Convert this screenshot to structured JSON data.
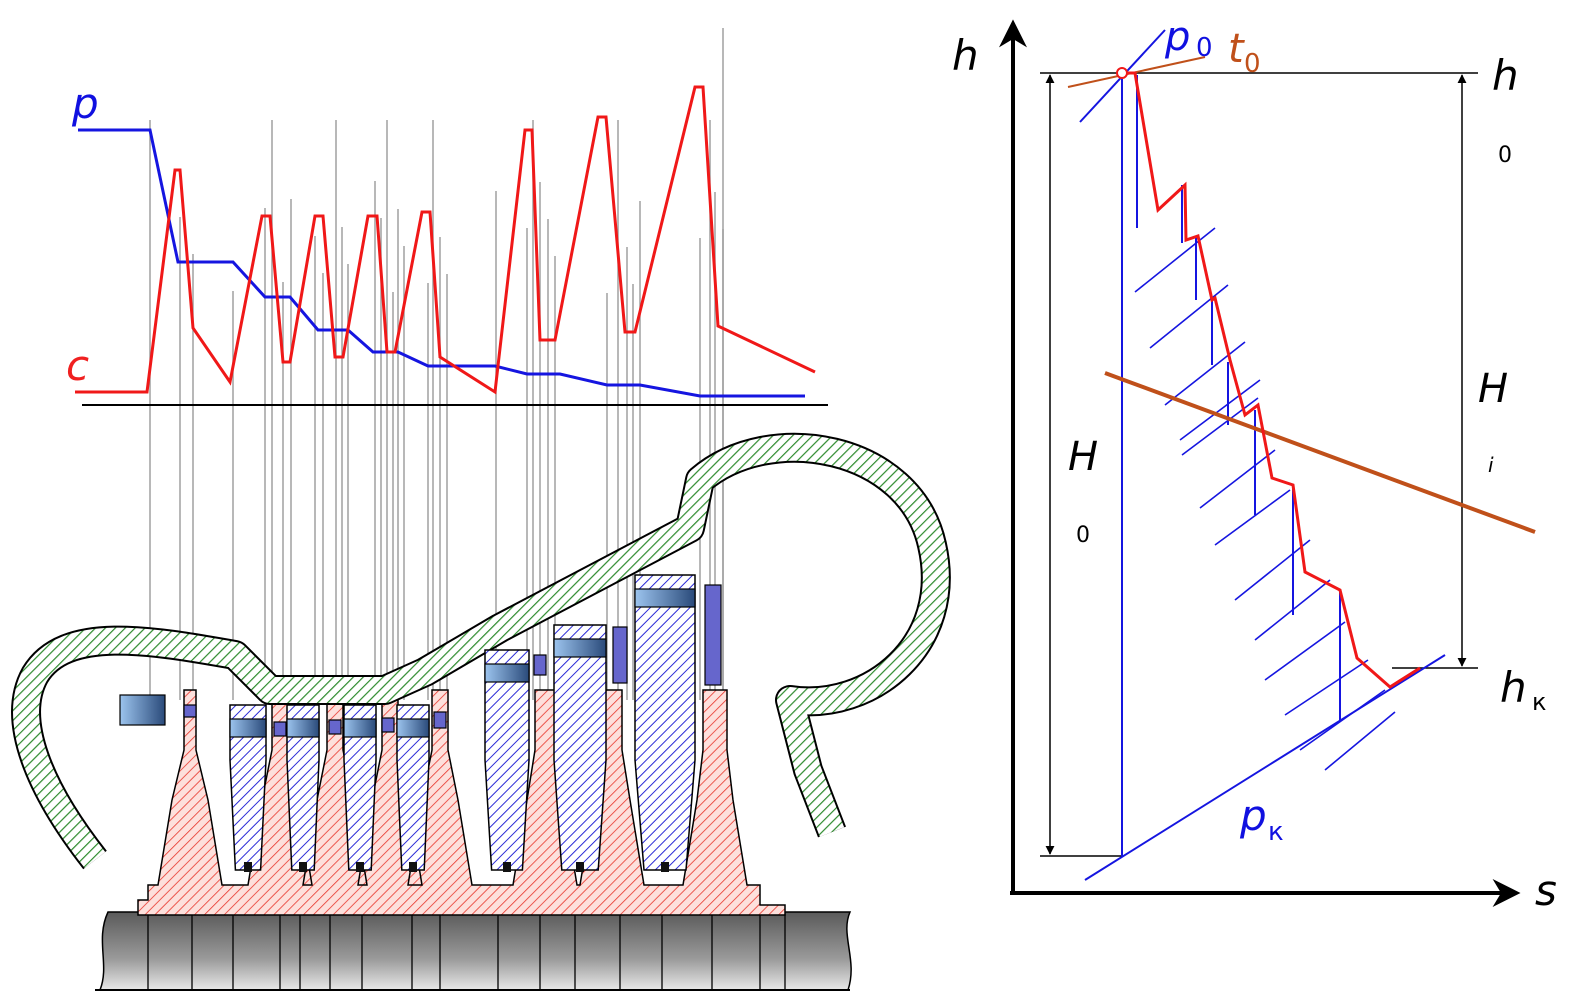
{
  "left_plot": {
    "pressure_label": "p",
    "velocity_label": "c"
  },
  "hs_diagram": {
    "y_axis_label": "h",
    "x_axis_label": "s",
    "p0": {
      "symbol": "p",
      "subscript": "0"
    },
    "t0": {
      "symbol": "t",
      "subscript": "0"
    },
    "h0": {
      "symbol": "h",
      "subscript": "0"
    },
    "Hi": {
      "symbol": "H",
      "subscript": "i"
    },
    "H0": {
      "symbol": "H",
      "subscript": "0"
    },
    "hk": {
      "symbol": "h",
      "subscript": "к"
    },
    "pk": {
      "symbol": "p",
      "subscript": "к"
    }
  }
}
